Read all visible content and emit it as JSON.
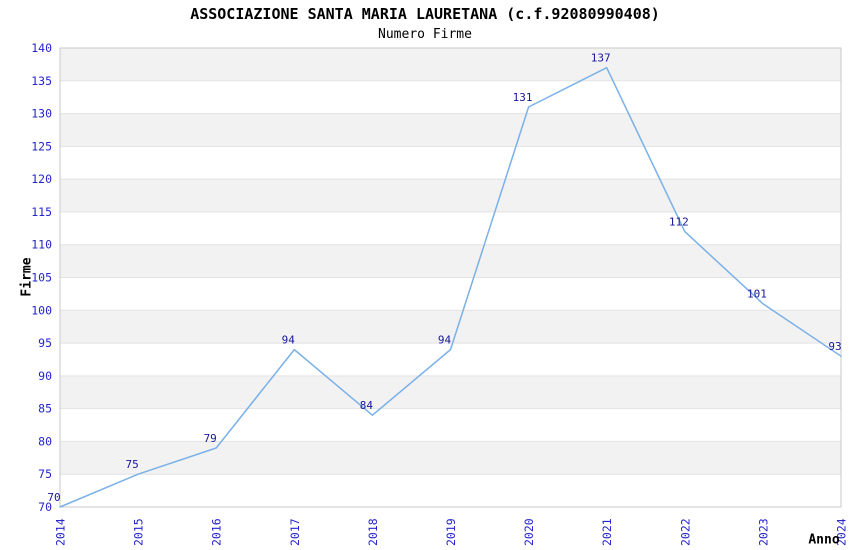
{
  "header": {
    "title": "ASSOCIAZIONE SANTA MARIA LAURETANA (c.f.92080990408)",
    "subtitle": "Numero Firme"
  },
  "chart_data": {
    "type": "line",
    "title": "ASSOCIAZIONE SANTA MARIA LAURETANA (c.f.92080990408)",
    "subtitle": "Numero Firme",
    "xlabel": "Anno",
    "ylabel": "Firme",
    "categories": [
      "2014",
      "2015",
      "2016",
      "2017",
      "2018",
      "2019",
      "2020",
      "2021",
      "2022",
      "2023",
      "2024"
    ],
    "series": [
      {
        "name": "Numero Firme",
        "values": [
          70,
          75,
          79,
          94,
          84,
          94,
          131,
          137,
          112,
          101,
          93
        ]
      }
    ],
    "ylim": [
      70,
      140
    ],
    "ytick_step": 5,
    "grid": "horizontal-alternating-bands",
    "legend_position": "none",
    "data_labels": true,
    "colors": {
      "line": "#7ab1e8",
      "data_label": "#17179b",
      "tick_label": "#2525cc",
      "band_gray": "#f2f2f2",
      "band_white": "#ffffff",
      "gridline": "#e3e3e3",
      "plot_border": "#c9c9c9",
      "text": "#000000",
      "background": "#ffffff"
    }
  }
}
